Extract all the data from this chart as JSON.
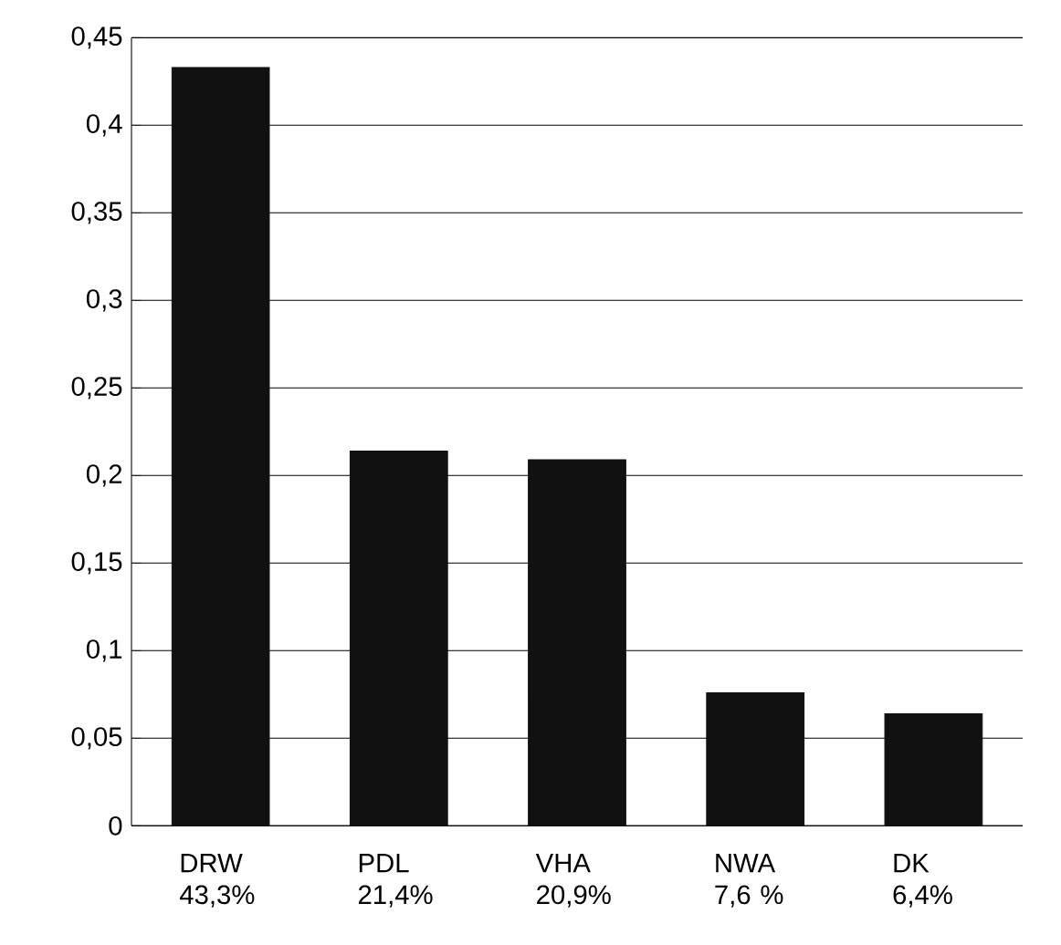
{
  "chart_data": {
    "type": "bar",
    "categories": [
      "DRW 43,3%",
      "PDL 21,4%",
      "VHA 20,9%",
      "NWA 7,6 %",
      "DK 6,4%"
    ],
    "values": [
      0.433,
      0.214,
      0.209,
      0.076,
      0.064
    ],
    "color": "#111111",
    "ylim": [
      0,
      0.45
    ],
    "yticks": [
      {
        "value": 0,
        "label": "0"
      },
      {
        "value": 0.05,
        "label": "0,05"
      },
      {
        "value": 0.1,
        "label": "0,1"
      },
      {
        "value": 0.15,
        "label": "0,15"
      },
      {
        "value": 0.2,
        "label": "0,2"
      },
      {
        "value": 0.25,
        "label": "0,25"
      },
      {
        "value": 0.3,
        "label": "0,3"
      },
      {
        "value": 0.35,
        "label": "0,35"
      },
      {
        "value": 0.4,
        "label": "0,4"
      },
      {
        "value": 0.45,
        "label": "0,45"
      }
    ],
    "grid": "y"
  }
}
